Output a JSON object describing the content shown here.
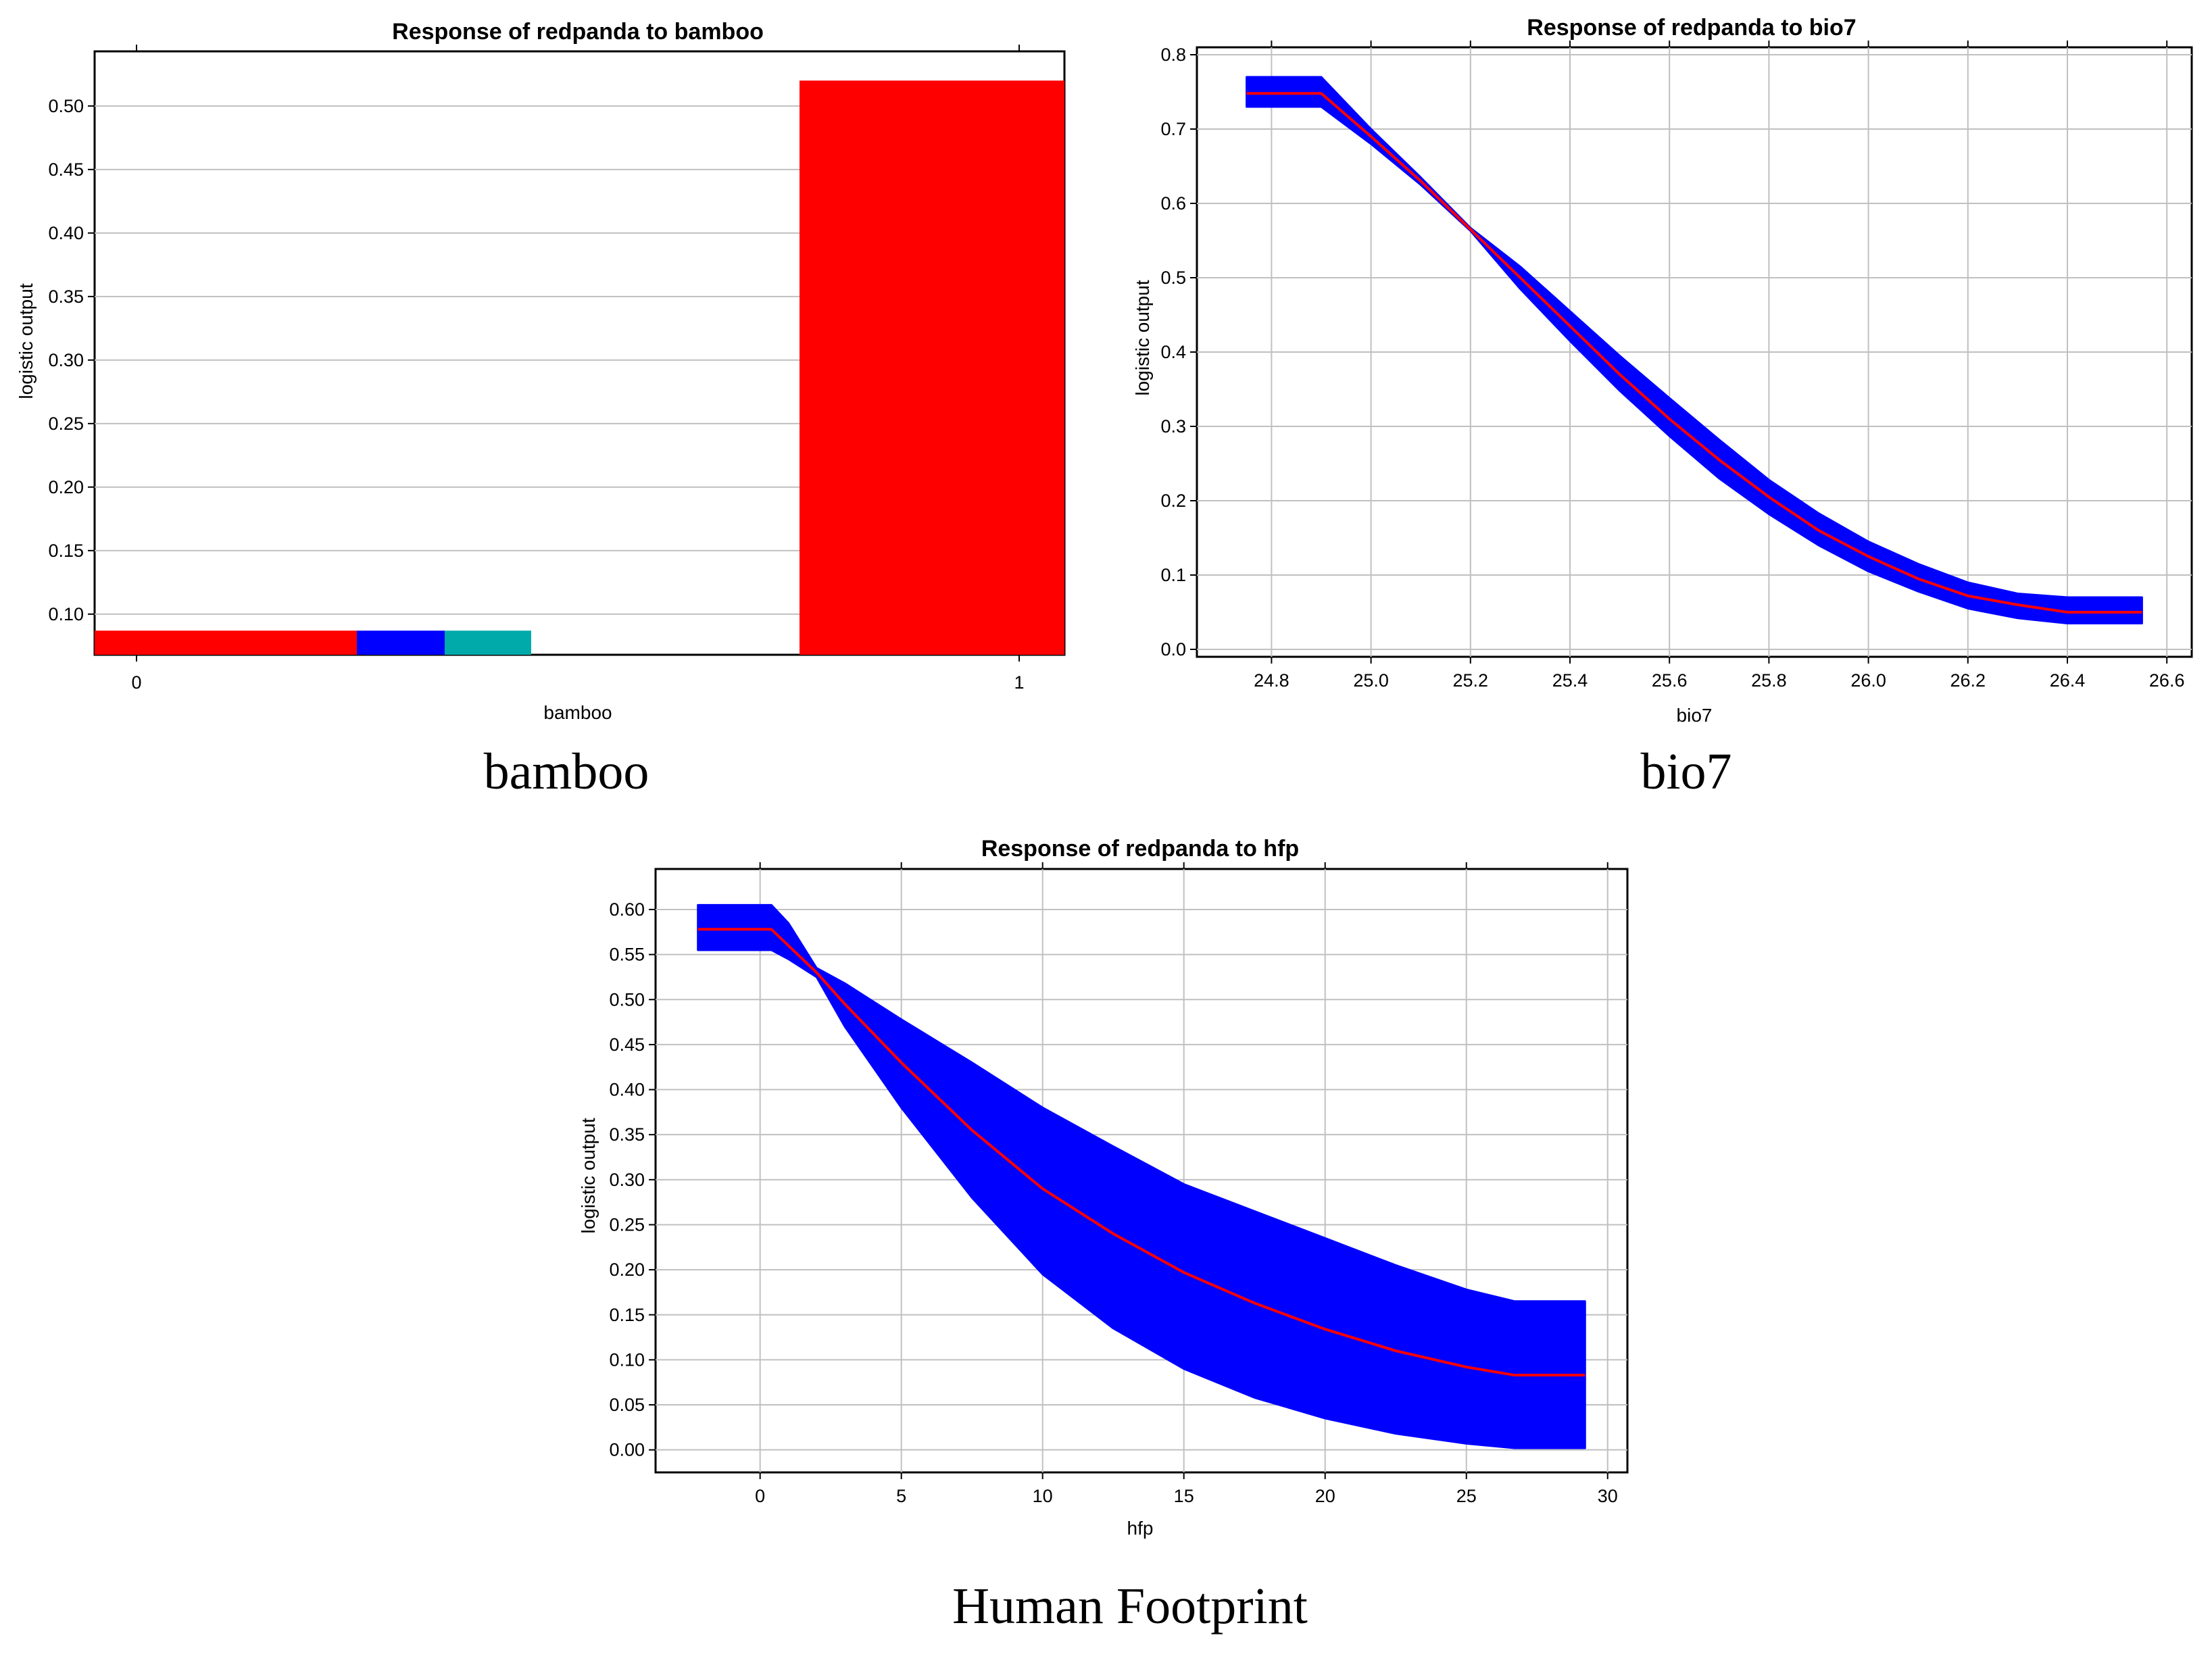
{
  "colors": {
    "primary": "#ff0000",
    "band": "#0000ff",
    "teal": "#00aaaa",
    "grid": "#c0c0c0"
  },
  "captions": [
    "bamboo",
    "bio7",
    "Human Footprint"
  ],
  "chart_data": [
    {
      "type": "bar",
      "title": "Response of redpanda to bamboo",
      "xlabel": "bamboo",
      "ylabel": "logistic output",
      "categories": [
        "0",
        "1"
      ],
      "values": [
        0.087,
        0.52
      ],
      "ylim": [
        0.068,
        0.543
      ],
      "yticks": [
        "0.10",
        "0.15",
        "0.20",
        "0.25",
        "0.30",
        "0.35",
        "0.40",
        "0.45",
        "0.50"
      ],
      "grid": "horizontal",
      "extra_segments": [
        {
          "color": "blue",
          "value": 0.087
        },
        {
          "color": "teal",
          "value": 0.087
        }
      ]
    },
    {
      "type": "line",
      "title": "Response of redpanda to bio7",
      "xlabel": "bio7",
      "ylabel": "logistic output",
      "xlim": [
        24.65,
        26.65
      ],
      "ylim": [
        -0.01,
        0.81
      ],
      "xticks": [
        "24.8",
        "25.0",
        "25.2",
        "25.4",
        "25.6",
        "25.8",
        "26.0",
        "26.2",
        "26.4",
        "26.6"
      ],
      "yticks": [
        "0.0",
        "0.1",
        "0.2",
        "0.3",
        "0.4",
        "0.5",
        "0.6",
        "0.7",
        "0.8"
      ],
      "grid": true,
      "series": [
        {
          "role": "mean",
          "x": [
            24.75,
            24.9,
            25.0,
            25.1,
            25.2,
            25.3,
            25.4,
            25.5,
            25.6,
            25.7,
            25.8,
            25.9,
            26.0,
            26.1,
            26.2,
            26.3,
            26.4,
            26.55
          ],
          "y": [
            0.748,
            0.748,
            0.69,
            0.63,
            0.565,
            0.5,
            0.435,
            0.37,
            0.31,
            0.255,
            0.205,
            0.16,
            0.125,
            0.095,
            0.072,
            0.06,
            0.05,
            0.05
          ]
        },
        {
          "role": "band-upper",
          "x": [
            24.75,
            24.9,
            25.0,
            25.1,
            25.2,
            25.3,
            25.4,
            25.5,
            25.6,
            25.7,
            25.8,
            25.9,
            26.0,
            26.1,
            26.2,
            26.3,
            26.4,
            26.55
          ],
          "y": [
            0.77,
            0.77,
            0.7,
            0.635,
            0.567,
            0.515,
            0.455,
            0.395,
            0.338,
            0.282,
            0.228,
            0.183,
            0.145,
            0.115,
            0.09,
            0.075,
            0.07,
            0.07
          ]
        },
        {
          "role": "band-lower",
          "x": [
            24.75,
            24.9,
            25.0,
            25.1,
            25.2,
            25.3,
            25.4,
            25.5,
            25.6,
            25.7,
            25.8,
            25.9,
            26.0,
            26.1,
            26.2,
            26.3,
            26.4,
            26.55
          ],
          "y": [
            0.73,
            0.73,
            0.68,
            0.625,
            0.563,
            0.485,
            0.415,
            0.348,
            0.287,
            0.23,
            0.182,
            0.14,
            0.105,
            0.078,
            0.055,
            0.042,
            0.035,
            0.035
          ]
        }
      ]
    },
    {
      "type": "line",
      "title": "Response of redpanda to hfp",
      "xlabel": "hfp",
      "ylabel": "logistic output",
      "xlim": [
        -3.7,
        30.7
      ],
      "ylim": [
        -0.025,
        0.645
      ],
      "xticks": [
        "0",
        "5",
        "10",
        "15",
        "20",
        "25",
        "30"
      ],
      "yticks": [
        "0.00",
        "0.05",
        "0.10",
        "0.15",
        "0.20",
        "0.25",
        "0.30",
        "0.35",
        "0.40",
        "0.45",
        "0.50",
        "0.55",
        "0.60"
      ],
      "grid": true,
      "series": [
        {
          "role": "mean",
          "x": [
            -2.2,
            0.4,
            1.0,
            2.0,
            3.0,
            5.0,
            7.5,
            10.0,
            12.5,
            15.0,
            17.5,
            20.0,
            22.5,
            25.0,
            26.7,
            29.2
          ],
          "y": [
            0.578,
            0.578,
            0.56,
            0.53,
            0.495,
            0.43,
            0.355,
            0.29,
            0.24,
            0.197,
            0.163,
            0.134,
            0.11,
            0.092,
            0.083,
            0.083
          ]
        },
        {
          "role": "band-upper",
          "x": [
            -2.2,
            0.4,
            1.0,
            2.0,
            3.0,
            5.0,
            7.5,
            10.0,
            12.5,
            15.0,
            17.5,
            20.0,
            22.5,
            25.0,
            26.7,
            29.2
          ],
          "y": [
            0.605,
            0.605,
            0.585,
            0.535,
            0.518,
            0.478,
            0.43,
            0.38,
            0.337,
            0.295,
            0.265,
            0.235,
            0.205,
            0.178,
            0.165,
            0.165
          ]
        },
        {
          "role": "band-lower",
          "x": [
            -2.2,
            0.4,
            1.0,
            2.0,
            3.0,
            5.0,
            7.5,
            10.0,
            12.5,
            15.0,
            17.5,
            20.0,
            22.5,
            25.0,
            26.7,
            29.2
          ],
          "y": [
            0.555,
            0.555,
            0.545,
            0.525,
            0.47,
            0.38,
            0.28,
            0.195,
            0.135,
            0.09,
            0.058,
            0.035,
            0.018,
            0.007,
            0.002,
            0.002
          ]
        }
      ]
    }
  ]
}
